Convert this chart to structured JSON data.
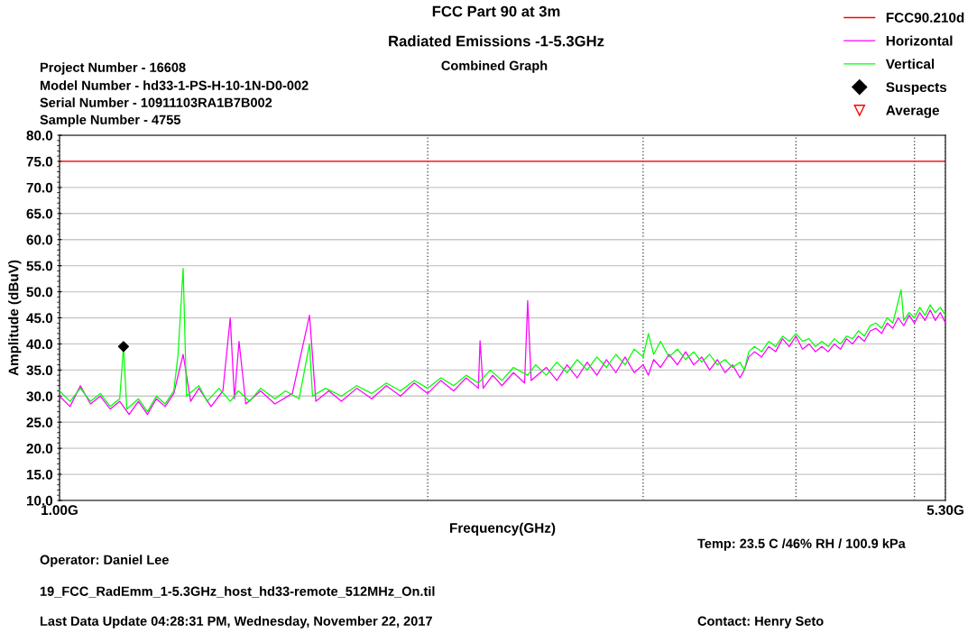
{
  "chart_data": {
    "type": "line",
    "title": "FCC Part 90 at 3m",
    "subtitle": "Radiated Emissions -1-5.3GHz",
    "xlabel": "Frequency(GHz)",
    "ylabel": "Amplitude (dBuV)",
    "log": "x",
    "xlim": [
      1.0,
      5.3
    ],
    "xticks": [
      {
        "value": 1.0,
        "label": "1.00G"
      },
      {
        "value": 2,
        "label": null
      },
      {
        "value": 3,
        "label": null
      },
      {
        "value": 4,
        "label": null
      },
      {
        "value": 5,
        "label": null
      },
      {
        "value": 5.3,
        "label": "5.30G"
      }
    ],
    "ylim": [
      10,
      80
    ],
    "yticks": [
      {
        "value": 10,
        "label": "10.0"
      },
      {
        "value": 15,
        "label": "15.0"
      },
      {
        "value": 20,
        "label": "20.0"
      },
      {
        "value": 25,
        "label": "25.0"
      },
      {
        "value": 30,
        "label": "30.0"
      },
      {
        "value": 35,
        "label": "35.0"
      },
      {
        "value": 40,
        "label": "40.0"
      },
      {
        "value": 45,
        "label": "45.0"
      },
      {
        "value": 50,
        "label": "50.0"
      },
      {
        "value": 55,
        "label": "55.0"
      },
      {
        "value": 60,
        "label": "60.0"
      },
      {
        "value": 65,
        "label": "65.0"
      },
      {
        "value": 70,
        "label": "70.0"
      },
      {
        "value": 75,
        "label": "75.0"
      },
      {
        "value": 80,
        "label": "80.0"
      }
    ],
    "grid": true,
    "legend": "top right",
    "series": [
      {
        "name": "FCC90.210d",
        "color": "#ff0000",
        "x": [
          1.0,
          5.3
        ],
        "values": [
          75,
          75
        ]
      },
      {
        "name": "Horizontal",
        "color": "#ff00ff",
        "x": [
          1.0,
          1.02,
          1.04,
          1.06,
          1.08,
          1.1,
          1.12,
          1.14,
          1.16,
          1.18,
          1.2,
          1.22,
          1.24,
          1.262,
          1.28,
          1.3,
          1.33,
          1.36,
          1.379,
          1.39,
          1.402,
          1.42,
          1.46,
          1.5,
          1.55,
          1.601,
          1.62,
          1.66,
          1.7,
          1.75,
          1.8,
          1.85,
          1.9,
          1.95,
          2.0,
          2.05,
          2.1,
          2.15,
          2.2,
          2.207,
          2.22,
          2.26,
          2.3,
          2.35,
          2.4,
          2.414,
          2.43,
          2.5,
          2.55,
          2.6,
          2.65,
          2.7,
          2.75,
          2.8,
          2.85,
          2.9,
          2.95,
          3.0,
          3.03,
          3.06,
          3.1,
          3.15,
          3.2,
          3.25,
          3.3,
          3.35,
          3.4,
          3.45,
          3.5,
          3.55,
          3.6,
          3.63,
          3.66,
          3.7,
          3.75,
          3.8,
          3.85,
          3.9,
          3.95,
          4.0,
          4.05,
          4.1,
          4.15,
          4.2,
          4.25,
          4.3,
          4.35,
          4.4,
          4.45,
          4.5,
          4.55,
          4.6,
          4.65,
          4.7,
          4.75,
          4.8,
          4.85,
          4.9,
          4.95,
          5.0,
          5.05,
          5.1,
          5.15,
          5.2,
          5.25,
          5.3
        ],
        "values": [
          30,
          28,
          32,
          28.5,
          30,
          27.5,
          29,
          26.5,
          29,
          26.5,
          29.5,
          28,
          30.5,
          38,
          29,
          31.5,
          28,
          31,
          45,
          29.5,
          40.5,
          28.5,
          31,
          28.5,
          30.5,
          45.5,
          29,
          31,
          29,
          31.5,
          29.5,
          32,
          30,
          32.5,
          30.5,
          33,
          31,
          33.5,
          31.5,
          40.6,
          31.5,
          34,
          32,
          34.5,
          32.5,
          48.3,
          33,
          35.5,
          33,
          36,
          33.5,
          36.5,
          34,
          37,
          34.5,
          37.5,
          34.5,
          36,
          34,
          37,
          35.5,
          38,
          36,
          38.5,
          36,
          37.5,
          35,
          37,
          34.5,
          36,
          33.5,
          35,
          37.5,
          38.5,
          37.5,
          39.5,
          38.5,
          41,
          39.5,
          41.5,
          39,
          40,
          38.5,
          39.5,
          38.5,
          40,
          39,
          41,
          40,
          41.5,
          40.5,
          42.5,
          43,
          42,
          44,
          43,
          45,
          43.5,
          45.5,
          44,
          46,
          44.5,
          46.5,
          44.5,
          46,
          44
        ]
      },
      {
        "name": "Vertical",
        "color": "#00ff00",
        "x": [
          1.0,
          1.02,
          1.04,
          1.06,
          1.08,
          1.1,
          1.12,
          1.128,
          1.135,
          1.16,
          1.18,
          1.2,
          1.22,
          1.24,
          1.25,
          1.262,
          1.27,
          1.3,
          1.32,
          1.35,
          1.379,
          1.4,
          1.43,
          1.46,
          1.5,
          1.53,
          1.57,
          1.601,
          1.61,
          1.65,
          1.7,
          1.75,
          1.8,
          1.85,
          1.9,
          1.95,
          2.0,
          2.05,
          2.1,
          2.15,
          2.2,
          2.25,
          2.3,
          2.35,
          2.414,
          2.45,
          2.5,
          2.55,
          2.6,
          2.65,
          2.7,
          2.75,
          2.8,
          2.85,
          2.9,
          2.95,
          3.0,
          3.03,
          3.06,
          3.1,
          3.15,
          3.2,
          3.25,
          3.3,
          3.35,
          3.4,
          3.45,
          3.5,
          3.55,
          3.6,
          3.63,
          3.66,
          3.7,
          3.75,
          3.8,
          3.85,
          3.9,
          3.95,
          4.0,
          4.05,
          4.1,
          4.15,
          4.2,
          4.25,
          4.3,
          4.35,
          4.4,
          4.45,
          4.5,
          4.55,
          4.6,
          4.65,
          4.7,
          4.75,
          4.8,
          4.876,
          4.9,
          4.95,
          5.0,
          5.05,
          5.1,
          5.15,
          5.2,
          5.25,
          5.3
        ],
        "values": [
          31,
          29,
          31.5,
          29,
          30.5,
          28,
          29.5,
          39.5,
          27.5,
          29.5,
          27,
          30,
          28.5,
          31,
          38,
          54.5,
          30,
          32,
          29,
          31.5,
          29,
          31,
          29,
          31.5,
          29.5,
          31,
          29.5,
          40,
          30,
          31.5,
          30,
          32,
          30.5,
          32.5,
          31,
          33,
          31.5,
          33.5,
          32,
          34,
          32.5,
          35,
          33,
          35.5,
          34,
          36,
          34,
          36.5,
          34.5,
          37,
          35,
          37.5,
          35.5,
          38,
          36,
          39,
          37.5,
          42,
          38,
          40.5,
          37.5,
          39,
          37,
          38.5,
          36.5,
          38,
          36,
          37,
          35.5,
          36.5,
          35,
          38.5,
          39.5,
          38.5,
          40.5,
          39.5,
          41.5,
          40.5,
          42,
          40.5,
          41,
          39.5,
          40.5,
          39.5,
          41,
          40,
          41.5,
          41,
          42.5,
          41.5,
          43.5,
          44,
          43,
          45,
          44,
          50.4,
          44.5,
          46,
          45,
          47,
          45.5,
          47.5,
          46,
          47,
          45.5
        ]
      },
      {
        "name": "Suspects",
        "type": "scatter",
        "color": "#000000",
        "marker": "diamond",
        "x": [
          1.128
        ],
        "values": [
          39.5
        ]
      },
      {
        "name": "Average",
        "type": "scatter",
        "color": "#ff0000",
        "marker": "triangle"
      }
    ],
    "annotations": [
      "Combined Graph",
      "Project Number - 16608",
      "Model Number - hd33-1-PS-H-10-1N-D0-002",
      "Serial Number - 10911103RA1B7B002",
      "Sample Number - 4755",
      "Temp: 23.5 C /46% RH / 100.9 kPa",
      "Operator: Daniel Lee",
      "19_FCC_RadEmm_1-5.3GHz_host_hd33-remote_512MHz_On.til",
      "Last Data Update 04:28:31 PM, Wednesday, November 22, 2017",
      "Contact: Henry Seto"
    ]
  }
}
